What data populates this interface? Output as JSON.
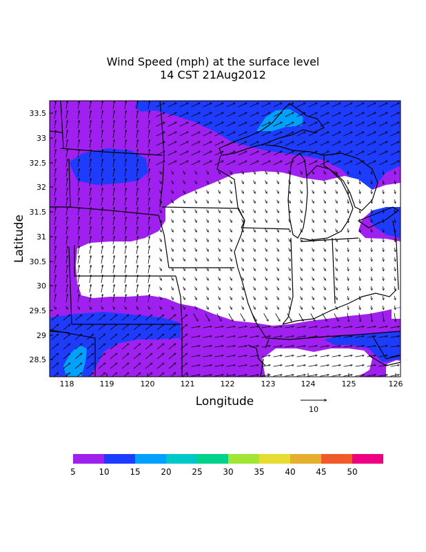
{
  "title": {
    "line1": "Wind Speed (mph) at the surface level",
    "line2": "14 CST 21Aug2012"
  },
  "axes": {
    "xlabel": "Longitude",
    "ylabel": "Latitude",
    "xticks": [
      "118",
      "119",
      "120",
      "121",
      "122",
      "123",
      "124",
      "125",
      "126"
    ],
    "yticks": [
      "33.5",
      "33",
      "32.5",
      "32",
      "31.5",
      "31",
      "30.5",
      "30",
      "29.5",
      "29",
      "28.5"
    ]
  },
  "reference_vector": {
    "label": "10"
  },
  "colorbar": {
    "colors": [
      "#a020f0",
      "#1e3cff",
      "#00a0ff",
      "#00c8c8",
      "#00d28c",
      "#a0e632",
      "#e6dc32",
      "#e6af2d",
      "#f05a28",
      "#f00082"
    ],
    "labels": [
      "5",
      "10",
      "15",
      "20",
      "25",
      "30",
      "35",
      "40",
      "45",
      "50"
    ]
  },
  "map": {
    "background_color": "#ffffff",
    "speed_colors": {
      "5-10": "#a020f0",
      "10-15": "#1e3cff",
      "15-20": "#00a0ff",
      "20-25": "#00c8c8"
    }
  }
}
